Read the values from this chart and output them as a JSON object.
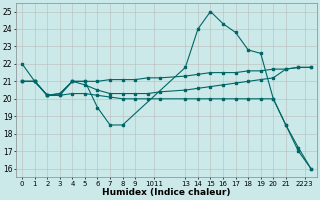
{
  "xlabel": "Humidex (Indice chaleur)",
  "bg_color": "#cce9e9",
  "grid_color": "#bbbbbb",
  "line_color": "#006666",
  "xlim": [
    -0.5,
    23.5
  ],
  "ylim": [
    15.5,
    25.5
  ],
  "xtick_labels": [
    "0",
    "1",
    "2",
    "3",
    "4",
    "5",
    "6",
    "7",
    "8",
    "9",
    "1011",
    "13",
    "14",
    "15",
    "16",
    "17",
    "18",
    "19",
    "20",
    "21",
    "2223"
  ],
  "xtick_pos": [
    0,
    1,
    2,
    3,
    4,
    5,
    6,
    7,
    8,
    9,
    10.5,
    13,
    14,
    15,
    16,
    17,
    18,
    19,
    20,
    21,
    22.5
  ],
  "yticks": [
    16,
    17,
    18,
    19,
    20,
    21,
    22,
    23,
    24,
    25
  ],
  "line1_x": [
    0,
    1,
    2,
    3,
    4,
    5,
    6,
    7,
    8,
    13,
    14,
    15,
    16,
    17,
    18,
    19,
    20,
    21,
    22,
    23
  ],
  "line1_y": [
    22,
    21,
    20.2,
    20.2,
    21,
    21,
    19.5,
    18.5,
    18.5,
    21.8,
    24.0,
    25.0,
    24.3,
    23.8,
    22.8,
    22.6,
    20.0,
    18.5,
    17.2,
    16.0
  ],
  "line2_x": [
    0,
    1,
    2,
    3,
    4,
    5,
    6,
    7,
    8,
    9,
    10,
    11,
    13,
    14,
    15,
    16,
    17,
    18,
    19,
    20,
    21,
    22,
    23
  ],
  "line2_y": [
    21,
    21,
    20.2,
    20.2,
    20.3,
    20.3,
    20.2,
    20.1,
    20.0,
    20.0,
    20.0,
    20.0,
    20.0,
    20.0,
    20.0,
    20.0,
    20.0,
    20.0,
    20.0,
    20.0,
    18.5,
    17.0,
    16.0
  ],
  "line3_x": [
    0,
    1,
    2,
    3,
    4,
    5,
    6,
    7,
    8,
    9,
    10,
    11,
    13,
    14,
    15,
    16,
    17,
    18,
    19,
    20,
    21,
    22,
    23
  ],
  "line3_y": [
    21,
    21,
    20.2,
    20.3,
    21.0,
    21.0,
    21.0,
    21.1,
    21.1,
    21.1,
    21.2,
    21.2,
    21.3,
    21.4,
    21.5,
    21.5,
    21.5,
    21.6,
    21.6,
    21.7,
    21.7,
    21.8,
    21.8
  ],
  "line4_x": [
    0,
    1,
    2,
    3,
    4,
    5,
    6,
    7,
    8,
    9,
    10,
    11,
    13,
    14,
    15,
    16,
    17,
    18,
    19,
    20,
    21,
    22,
    23
  ],
  "line4_y": [
    21,
    21,
    20.2,
    20.3,
    21.0,
    20.8,
    20.5,
    20.3,
    20.3,
    20.3,
    20.3,
    20.4,
    20.5,
    20.6,
    20.7,
    20.8,
    20.9,
    21.0,
    21.1,
    21.2,
    21.7,
    21.8,
    21.8
  ]
}
